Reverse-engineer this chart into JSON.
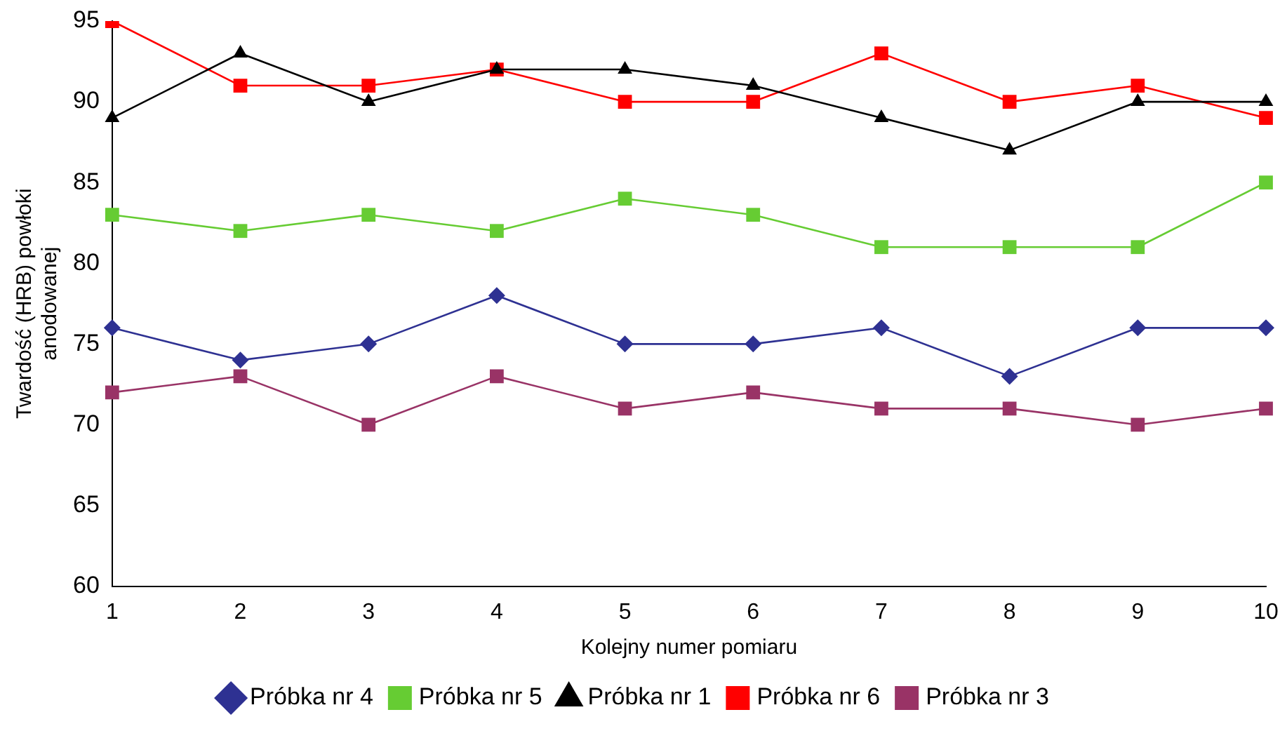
{
  "chart_data": {
    "type": "line",
    "xlabel": "Kolejny numer pomiaru",
    "ylabel": "Twardość (HRB) powłoki anodowanej",
    "categories": [
      "1",
      "2",
      "3",
      "4",
      "5",
      "6",
      "7",
      "8",
      "9",
      "10"
    ],
    "series": [
      {
        "name": "Próbka nr 4",
        "color": "#2e3192",
        "marker": "diamond",
        "values": [
          76,
          74,
          75,
          78,
          75,
          75,
          76,
          73,
          76,
          76
        ]
      },
      {
        "name": "Próbka nr 5",
        "color": "#66cc33",
        "marker": "square",
        "values": [
          83,
          82,
          83,
          82,
          84,
          83,
          81,
          81,
          81,
          85
        ]
      },
      {
        "name": "Próbka nr 1",
        "color": "#000000",
        "marker": "triangle",
        "values": [
          89,
          93,
          90,
          92,
          92,
          91,
          89,
          87,
          90,
          90
        ]
      },
      {
        "name": "Próbka nr 6",
        "color": "#ff0000",
        "marker": "square",
        "values": [
          95,
          91,
          91,
          92,
          90,
          90,
          93,
          90,
          91,
          89
        ]
      },
      {
        "name": "Próbka nr 3",
        "color": "#993366",
        "marker": "square",
        "values": [
          72,
          73,
          70,
          73,
          71,
          72,
          71,
          71,
          70,
          71
        ]
      }
    ],
    "ylim": [
      60,
      95
    ],
    "yticks": [
      60,
      65,
      70,
      75,
      80,
      85,
      90,
      95
    ],
    "grid": false,
    "legend": "bottom"
  }
}
